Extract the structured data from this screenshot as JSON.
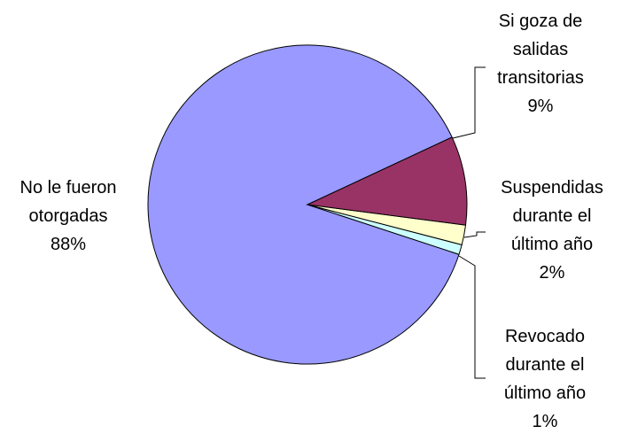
{
  "chart_data": {
    "type": "pie",
    "categories": [
      "Si goza de salidas transitorias",
      "Suspendidas durante el último año",
      "Revocado durante el último año",
      "No le fueron otorgadas"
    ],
    "values": [
      9,
      2,
      1,
      88
    ],
    "value_labels": [
      "9%",
      "2%",
      "1%",
      "88%"
    ],
    "colors": [
      "#993366",
      "#ffffcc",
      "#ccffff",
      "#9999ff"
    ]
  }
}
